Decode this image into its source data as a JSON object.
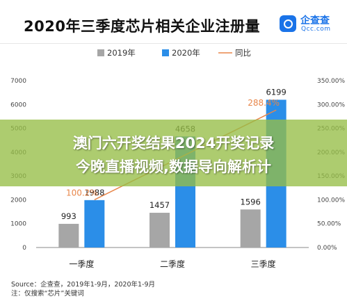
{
  "header": {
    "title": "2020年三季度芯片相关企业注册量",
    "brand_name": "企查查",
    "brand_sub": "Qcc.com"
  },
  "chart_data": {
    "type": "bar",
    "categories": [
      "一季度",
      "二季度",
      "三季度"
    ],
    "series": [
      {
        "name": "2019年",
        "values": [
          993,
          1457,
          1596
        ],
        "color": "#a6a6a6",
        "value_labels": [
          "993",
          "1457",
          "1596"
        ]
      },
      {
        "name": "2020年",
        "values": [
          1988,
          4658,
          6199
        ],
        "color": "#2b8ee8",
        "value_labels": [
          "1988",
          "4658",
          "6199"
        ]
      }
    ],
    "line_series": {
      "name": "同比",
      "values": [
        100.2,
        null,
        288.4
      ],
      "labels": [
        "100.2%",
        "",
        "288.4%"
      ],
      "color": "#e8864a"
    },
    "ylim": [
      0,
      7000
    ],
    "yticks": [
      "0",
      "1000",
      "2000",
      "3000",
      "4000",
      "5000",
      "6000",
      "7000"
    ],
    "y2lim": [
      0,
      350
    ],
    "y2ticks": [
      "0.00%",
      "50.00%",
      "100.00%",
      "150.00%",
      "200.00%",
      "250.00%",
      "300.00%",
      "350.00%"
    ],
    "legend_position": "top-center",
    "grid": false
  },
  "source": {
    "line1": "Source：企查查，2019年1-9月，2020年1-9月",
    "line2": "注：仅搜索“芯片”关键词"
  },
  "banner": {
    "line1": "澳门六开奖结果2024开奖记录",
    "line2": "今晚直播视频,数据导向解析计"
  }
}
